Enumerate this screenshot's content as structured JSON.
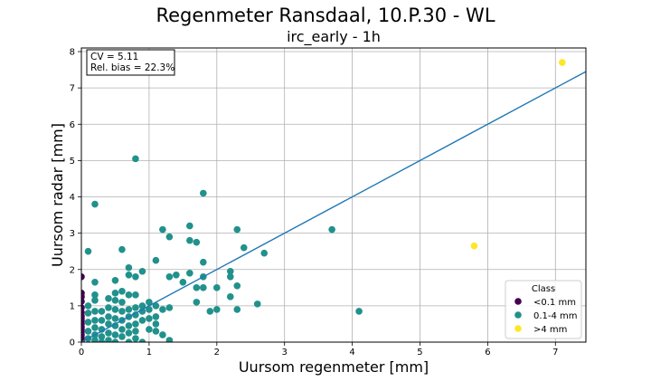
{
  "chart_data": {
    "type": "scatter",
    "title": "Regenmeter Ransdaal, 10.P.30 - WL",
    "subtitle": "irc_early - 1h",
    "xlabel": "Uursom regenmeter [mm]",
    "ylabel": "Uursom radar [mm]",
    "xlim": [
      0,
      7.45
    ],
    "ylim": [
      0,
      8.1
    ],
    "x_ticks": [
      "0",
      "1",
      "2",
      "3",
      "4",
      "5",
      "6",
      "7"
    ],
    "y_ticks": [
      "0",
      "1",
      "2",
      "3",
      "4",
      "5",
      "6",
      "7",
      "8"
    ],
    "grid": true,
    "stats": [
      "CV = 5.11",
      "Rel. bias = 22.3%"
    ],
    "regression_line": {
      "slope": 1.0,
      "intercept": 0.0,
      "color": "#1f77b4"
    },
    "legend": {
      "title": "Class",
      "position": "lower-right",
      "entries": [
        {
          "label": "<0.1 mm",
          "color": "#440154"
        },
        {
          "label": "0.1-4 mm",
          "color": "#21918c"
        },
        {
          "label": ">4 mm",
          "color": "#fde725"
        }
      ]
    },
    "series": [
      {
        "name": "<0.1 mm",
        "color": "#440154",
        "points": [
          [
            0,
            1.8
          ],
          [
            0,
            1.35
          ],
          [
            0,
            1.25
          ],
          [
            0,
            1.12
          ],
          [
            0,
            0.95
          ],
          [
            0,
            0.82
          ],
          [
            0,
            0.72
          ],
          [
            0,
            0.65
          ],
          [
            0,
            0.58
          ],
          [
            0,
            0.5
          ],
          [
            0,
            0.42
          ],
          [
            0,
            0.35
          ],
          [
            0,
            0.28
          ],
          [
            0,
            0.2
          ],
          [
            0,
            0.12
          ],
          [
            0,
            0.05
          ],
          [
            0,
            0.0
          ]
        ]
      },
      {
        "name": "0.1-4 mm",
        "color": "#21918c",
        "points": [
          [
            0.2,
            3.8
          ],
          [
            0.1,
            2.5
          ],
          [
            0.8,
            5.05
          ],
          [
            0.6,
            2.55
          ],
          [
            0.2,
            1.65
          ],
          [
            0.1,
            1.0
          ],
          [
            0.2,
            1.3
          ],
          [
            0.2,
            1.15
          ],
          [
            0.1,
            0.8
          ],
          [
            0.1,
            0.55
          ],
          [
            0.1,
            0.3
          ],
          [
            0.1,
            0.1
          ],
          [
            0.2,
            0.85
          ],
          [
            0.2,
            0.6
          ],
          [
            0.2,
            0.4
          ],
          [
            0.2,
            0.2
          ],
          [
            0.2,
            0.05
          ],
          [
            0.3,
            0.85
          ],
          [
            0.3,
            0.6
          ],
          [
            0.3,
            0.35
          ],
          [
            0.3,
            0.15
          ],
          [
            0.3,
            0.0
          ],
          [
            0.4,
            1.2
          ],
          [
            0.4,
            0.95
          ],
          [
            0.4,
            0.7
          ],
          [
            0.4,
            0.5
          ],
          [
            0.4,
            0.25
          ],
          [
            0.4,
            0.05
          ],
          [
            0.5,
            1.7
          ],
          [
            0.5,
            1.35
          ],
          [
            0.5,
            1.15
          ],
          [
            0.5,
            0.9
          ],
          [
            0.5,
            0.65
          ],
          [
            0.5,
            0.45
          ],
          [
            0.5,
            0.2
          ],
          [
            0.5,
            0.0
          ],
          [
            0.6,
            1.4
          ],
          [
            0.6,
            1.1
          ],
          [
            0.6,
            0.85
          ],
          [
            0.6,
            0.6
          ],
          [
            0.6,
            0.35
          ],
          [
            0.6,
            0.15
          ],
          [
            0.7,
            2.05
          ],
          [
            0.7,
            1.85
          ],
          [
            0.7,
            1.3
          ],
          [
            0.7,
            0.9
          ],
          [
            0.7,
            0.7
          ],
          [
            0.7,
            0.45
          ],
          [
            0.7,
            0.25
          ],
          [
            0.7,
            0.0
          ],
          [
            0.8,
            1.8
          ],
          [
            0.8,
            1.3
          ],
          [
            0.8,
            0.95
          ],
          [
            0.8,
            0.75
          ],
          [
            0.8,
            0.5
          ],
          [
            0.8,
            0.3
          ],
          [
            0.8,
            0.1
          ],
          [
            0.9,
            1.95
          ],
          [
            0.9,
            1.0
          ],
          [
            0.9,
            0.85
          ],
          [
            0.9,
            0.6
          ],
          [
            0.9,
            0.0
          ],
          [
            1.0,
            1.1
          ],
          [
            1.0,
            0.9
          ],
          [
            1.0,
            0.65
          ],
          [
            1.0,
            0.35
          ],
          [
            1.1,
            2.25
          ],
          [
            1.1,
            1.0
          ],
          [
            1.1,
            0.7
          ],
          [
            1.1,
            0.5
          ],
          [
            1.1,
            0.3
          ],
          [
            1.2,
            3.1
          ],
          [
            1.2,
            0.9
          ],
          [
            1.2,
            0.2
          ],
          [
            1.3,
            2.9
          ],
          [
            1.3,
            1.8
          ],
          [
            1.3,
            0.95
          ],
          [
            1.3,
            0.05
          ],
          [
            1.4,
            1.85
          ],
          [
            1.5,
            1.65
          ],
          [
            1.6,
            3.2
          ],
          [
            1.6,
            2.8
          ],
          [
            1.6,
            1.9
          ],
          [
            1.7,
            2.75
          ],
          [
            1.7,
            1.5
          ],
          [
            1.7,
            1.1
          ],
          [
            1.8,
            4.1
          ],
          [
            1.8,
            2.2
          ],
          [
            1.8,
            1.8
          ],
          [
            1.8,
            1.5
          ],
          [
            1.9,
            0.85
          ],
          [
            2.0,
            1.5
          ],
          [
            2.0,
            0.9
          ],
          [
            2.2,
            1.95
          ],
          [
            2.2,
            1.8
          ],
          [
            2.2,
            1.25
          ],
          [
            2.3,
            3.1
          ],
          [
            2.3,
            1.55
          ],
          [
            2.3,
            0.9
          ],
          [
            2.4,
            2.6
          ],
          [
            2.6,
            1.05
          ],
          [
            2.7,
            2.45
          ],
          [
            3.7,
            3.1
          ],
          [
            4.1,
            0.85
          ]
        ]
      },
      {
        "name": ">4 mm",
        "color": "#fde725",
        "points": [
          [
            5.8,
            2.65
          ],
          [
            7.1,
            7.7
          ]
        ]
      }
    ]
  }
}
